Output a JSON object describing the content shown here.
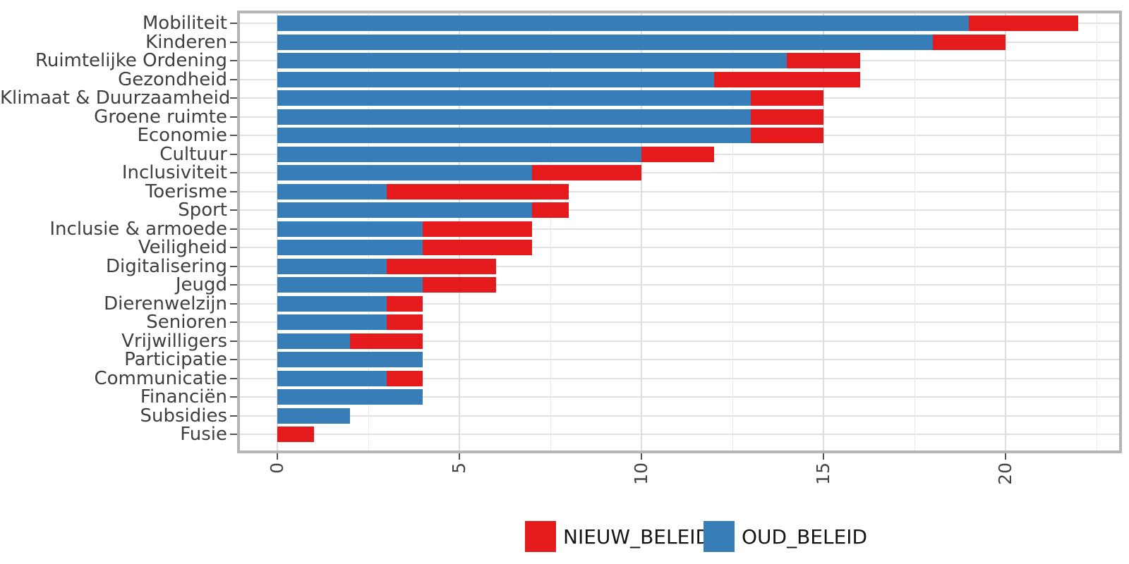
{
  "chart_data": {
    "type": "bar",
    "orientation": "horizontal",
    "stacked": true,
    "title": "",
    "xlabel": "",
    "ylabel": "",
    "categories": [
      "Mobiliteit",
      "Kinderen",
      "Ruimtelijke Ordening",
      "Gezondheid",
      "Klimaat & Duurzaamheid",
      "Groene ruimte",
      "Economie",
      "Cultuur",
      "Inclusiviteit",
      "Toerisme",
      "Sport",
      "Inclusie & armoede",
      "Veiligheid",
      "Digitalisering",
      "Jeugd",
      "Dierenwelzijn",
      "Senioren",
      "Vrijwilligers",
      "Participatie",
      "Communicatie",
      "Financiën",
      "Subsidies",
      "Fusie"
    ],
    "series": [
      {
        "name": "OUD_BELEID",
        "color": "#377EB8",
        "values": [
          19,
          18,
          14,
          12,
          13,
          13,
          13,
          10,
          7,
          3,
          7,
          4,
          4,
          3,
          4,
          3,
          3,
          2,
          4,
          3,
          4,
          2,
          0
        ]
      },
      {
        "name": "NIEUW_BELEID",
        "color": "#E41A1C",
        "values": [
          3,
          2,
          2,
          4,
          2,
          2,
          2,
          2,
          3,
          5,
          1,
          3,
          3,
          3,
          2,
          1,
          1,
          2,
          0,
          1,
          0,
          0,
          1
        ]
      }
    ],
    "xlim": [
      -1.1,
      23.1
    ],
    "x_major_ticks": [
      0,
      5,
      10,
      15,
      20
    ],
    "x_tick_labels": [
      "0",
      "5",
      "10",
      "15",
      "20"
    ],
    "x_minor_gridlines": [
      2.5,
      7.5,
      12.5,
      17.5,
      22.5
    ],
    "x_tick_label_rotation": 90,
    "grid": "major+minor",
    "legend": {
      "position": "bottom",
      "items": [
        {
          "label": "NIEUW_BELEID",
          "color": "#E41A1C"
        },
        {
          "label": "OUD_BELEID",
          "color": "#377EB8"
        }
      ]
    }
  }
}
